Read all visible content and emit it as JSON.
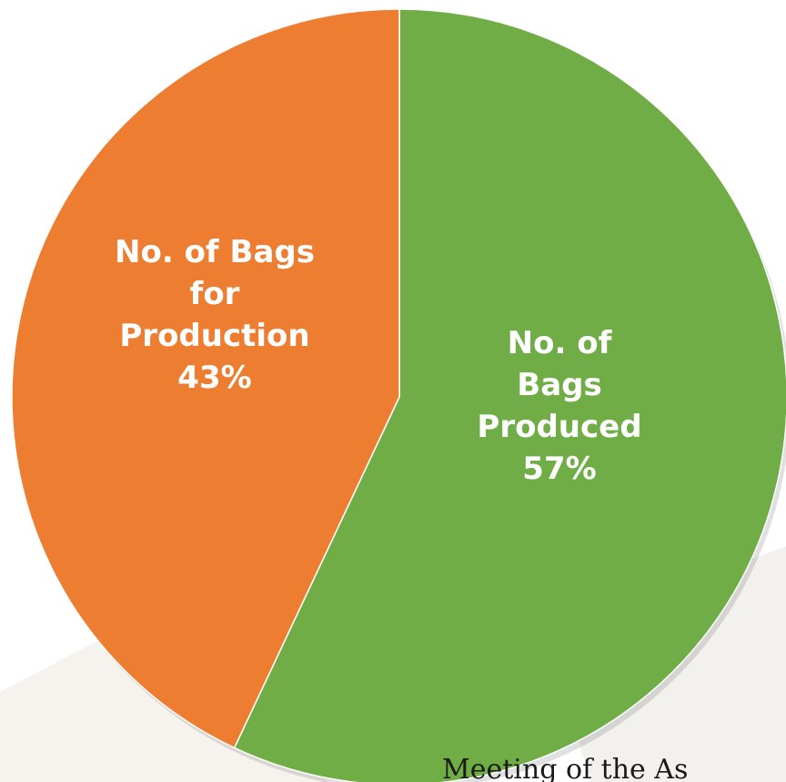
{
  "chart_data": {
    "type": "pie",
    "title": "",
    "slices": [
      {
        "label": "No. of Bags Produced",
        "value": 57,
        "color": "#70ad47",
        "data_label_lines": [
          "No. of",
          "Bags",
          "Produced",
          "57%"
        ]
      },
      {
        "label": "No. of Bags for Production",
        "value": 43,
        "color": "#ed7d31",
        "data_label_lines": [
          "No. of Bags",
          "for",
          "Production",
          "43%"
        ]
      }
    ],
    "start_angle_deg": 0,
    "direction": "clockwise",
    "legend": "none"
  },
  "footer": {
    "text": "Meeting of the As"
  }
}
